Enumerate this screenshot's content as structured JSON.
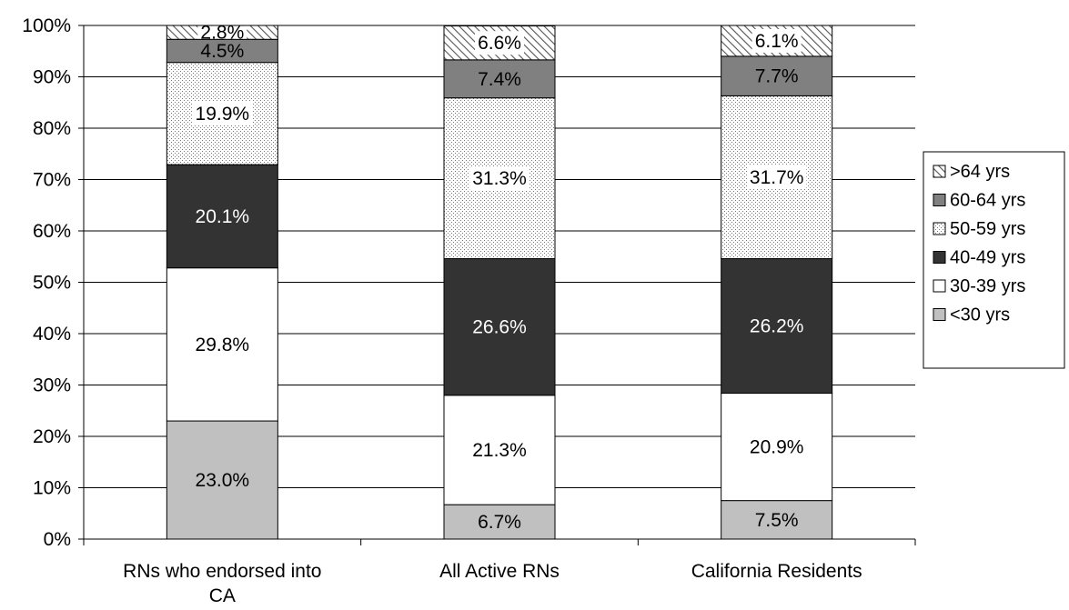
{
  "chart_data": {
    "type": "bar",
    "stacked": true,
    "orientation": "vertical",
    "categories": [
      [
        "RNs who endorsed into",
        "CA"
      ],
      [
        "All Active RNs"
      ],
      [
        "California Residents"
      ]
    ],
    "series": [
      {
        "name": "<30 yrs",
        "values": [
          23.0,
          6.7,
          7.5
        ],
        "labels": [
          "23.0%",
          "6.7%",
          "7.5%"
        ],
        "fill": "solid",
        "color": "#c0c0c0",
        "label_color": "#000000"
      },
      {
        "name": "30-39 yrs",
        "values": [
          29.8,
          21.3,
          20.9
        ],
        "labels": [
          "29.8%",
          "21.3%",
          "20.9%"
        ],
        "fill": "solid",
        "color": "#ffffff",
        "label_color": "#000000"
      },
      {
        "name": "40-49 yrs",
        "values": [
          20.1,
          26.6,
          26.2
        ],
        "labels": [
          "20.1%",
          "26.6%",
          "26.2%"
        ],
        "fill": "solid",
        "color": "#333333",
        "label_color": "#ffffff"
      },
      {
        "name": "50-59 yrs",
        "values": [
          19.9,
          31.3,
          31.7
        ],
        "labels": [
          "19.9%",
          "31.3%",
          "31.7%"
        ],
        "fill": "dots",
        "color": "#999999",
        "label_color": "#000000"
      },
      {
        "name": "60-64 yrs",
        "values": [
          4.5,
          7.4,
          7.7
        ],
        "labels": [
          "4.5%",
          "7.4%",
          "7.7%"
        ],
        "fill": "solid",
        "color": "#808080",
        "label_color": "#000000"
      },
      {
        "name": ">64 yrs",
        "values": [
          2.8,
          6.6,
          6.1
        ],
        "labels": [
          "2.8%",
          "6.6%",
          "6.1%"
        ],
        "fill": "hatch",
        "color": "#808080",
        "label_color": "#000000"
      }
    ],
    "y_ticks": [
      "0%",
      "10%",
      "20%",
      "30%",
      "40%",
      "50%",
      "60%",
      "70%",
      "80%",
      "90%",
      "100%"
    ],
    "ylim": [
      0,
      100
    ],
    "grid": true,
    "legend_position": "right",
    "legend_order": [
      ">64 yrs",
      "60-64 yrs",
      "50-59 yrs",
      "40-49 yrs",
      "30-39 yrs",
      "<30 yrs"
    ],
    "title": "",
    "xlabel": "",
    "ylabel": ""
  }
}
